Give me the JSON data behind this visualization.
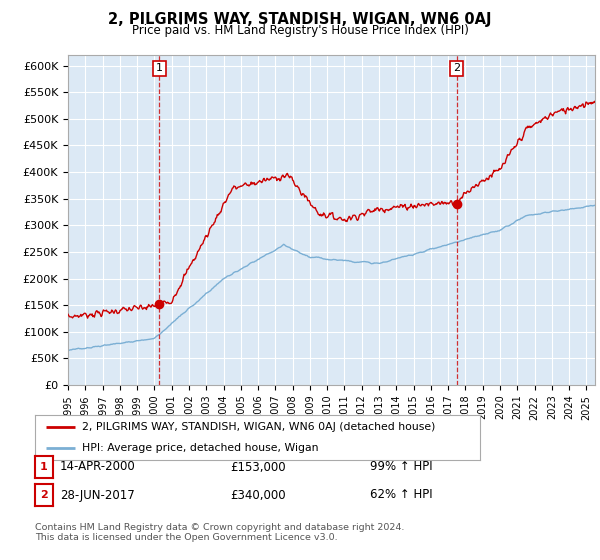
{
  "title": "2, PILGRIMS WAY, STANDISH, WIGAN, WN6 0AJ",
  "subtitle": "Price paid vs. HM Land Registry's House Price Index (HPI)",
  "ylabel_ticks": [
    "£0",
    "£50K",
    "£100K",
    "£150K",
    "£200K",
    "£250K",
    "£300K",
    "£350K",
    "£400K",
    "£450K",
    "£500K",
    "£550K",
    "£600K"
  ],
  "ytick_values": [
    0,
    50000,
    100000,
    150000,
    200000,
    250000,
    300000,
    350000,
    400000,
    450000,
    500000,
    550000,
    600000
  ],
  "ylim": [
    0,
    620000
  ],
  "sale_color": "#cc0000",
  "hpi_color": "#7bafd4",
  "vline_color": "#cc0000",
  "bg_color": "#ffffff",
  "chart_bg_color": "#dce9f5",
  "grid_color": "#ffffff",
  "legend_label_sale": "2, PILGRIMS WAY, STANDISH, WIGAN, WN6 0AJ (detached house)",
  "legend_label_hpi": "HPI: Average price, detached house, Wigan",
  "sale1_date": 2000.28,
  "sale1_price": 153000,
  "sale1_label": "1",
  "sale2_date": 2017.5,
  "sale2_price": 340000,
  "sale2_label": "2",
  "table_rows": [
    {
      "num": "1",
      "date": "14-APR-2000",
      "price": "£153,000",
      "hpi": "99% ↑ HPI"
    },
    {
      "num": "2",
      "date": "28-JUN-2017",
      "price": "£340,000",
      "hpi": "62% ↑ HPI"
    }
  ],
  "footer": "Contains HM Land Registry data © Crown copyright and database right 2024.\nThis data is licensed under the Open Government Licence v3.0.",
  "x_start": 1995.0,
  "x_end": 2025.5,
  "xtick_years": [
    1995,
    1996,
    1997,
    1998,
    1999,
    2000,
    2001,
    2002,
    2003,
    2004,
    2005,
    2006,
    2007,
    2008,
    2009,
    2010,
    2011,
    2012,
    2013,
    2014,
    2015,
    2016,
    2017,
    2018,
    2019,
    2020,
    2021,
    2022,
    2023,
    2024,
    2025
  ]
}
